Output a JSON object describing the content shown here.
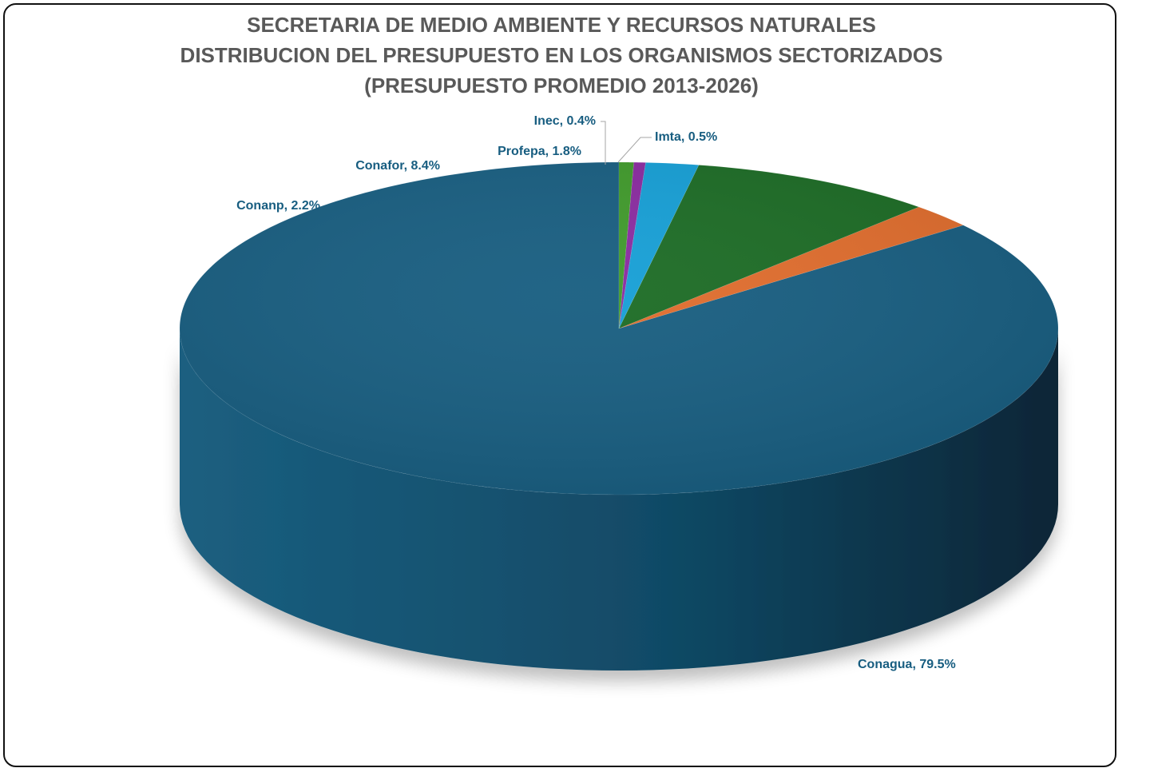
{
  "chart_data": {
    "type": "pie",
    "style": "3d",
    "title_lines": [
      "SECRETARIA DE MEDIO AMBIENTE Y RECURSOS NATURALES",
      "DISTRIBUCION DEL PRESUPUESTO EN LOS ORGANISMOS SECTORIZADOS",
      "(PRESUPUESTO PROMEDIO 2013-2026)"
    ],
    "legend": "none",
    "slices": [
      {
        "label": "Conagua, 79.5%",
        "name": "Conagua",
        "value": 79.5,
        "color": "#175d80"
      },
      {
        "label": "Conanp, 2.2%",
        "name": "Conanp",
        "value": 2.2,
        "color": "#e06c2c"
      },
      {
        "label": "Conafor, 8.4%",
        "name": "Conafor",
        "value": 8.4,
        "color": "#1b6b24"
      },
      {
        "label": "Profepa, 1.8%",
        "name": "Profepa",
        "value": 1.8,
        "color": "#159fd6"
      },
      {
        "label": "Inec, 0.4%",
        "name": "Inec",
        "value": 0.4,
        "color": "#8a2aa0"
      },
      {
        "label": "Imta, 0.5%",
        "name": "Imta",
        "value": 0.5,
        "color": "#3f9a2a"
      }
    ],
    "label_color": "#175d80"
  }
}
